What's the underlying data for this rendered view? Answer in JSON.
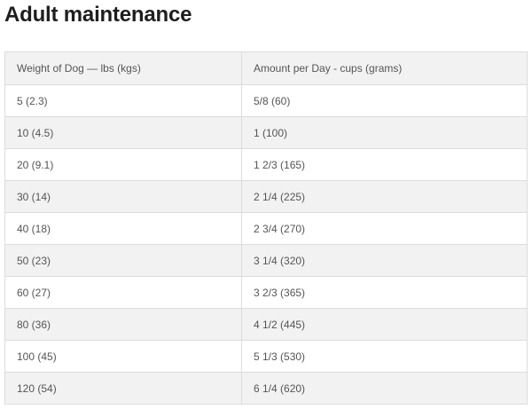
{
  "title": "Adult maintenance",
  "table": {
    "headers": [
      "Weight of Dog — lbs (kgs)",
      "Amount per Day - cups (grams)"
    ],
    "rows": [
      [
        "5 (2.3)",
        "5/8 (60)"
      ],
      [
        "10 (4.5)",
        "1 (100)"
      ],
      [
        "20 (9.1)",
        "1 2/3 (165)"
      ],
      [
        "30 (14)",
        "2 1/4 (225)"
      ],
      [
        "40 (18)",
        "2 3/4 (270)"
      ],
      [
        "50 (23)",
        "3 1/4 (320)"
      ],
      [
        "60 (27)",
        "3 2/3 (365)"
      ],
      [
        "80 (36)",
        "4 1/2 (445)"
      ],
      [
        "100 (45)",
        "5 1/3 (530)"
      ],
      [
        "120 (54)",
        "6 1/4 (620)"
      ]
    ]
  },
  "colors": {
    "title": "#1e1e1e",
    "text": "#555555",
    "border": "#dcdcdc",
    "stripe": "#f2f2f2"
  }
}
